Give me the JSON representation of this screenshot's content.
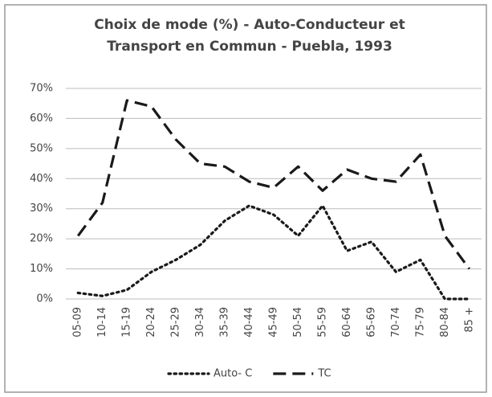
{
  "chart_data": {
    "type": "line",
    "title": "Choix de mode (%) - Auto-Conducteur et Transport en Commun - Puebla, 1993",
    "categories": [
      "05-09",
      "10-14",
      "15-19",
      "20-24",
      "25-29",
      "30-34",
      "35-39",
      "40-44",
      "45-49",
      "50-54",
      "55-59",
      "60-64",
      "65-69",
      "70-74",
      "75-79",
      "80-84",
      "85 +"
    ],
    "series": [
      {
        "name": "Auto- C",
        "color": "#1a1a1a",
        "dash": "dotted",
        "values": [
          2,
          1,
          3,
          9,
          13,
          18,
          26,
          31,
          28,
          21,
          31,
          16,
          19,
          9,
          13,
          0,
          0
        ]
      },
      {
        "name": "TC",
        "color": "#1a1a1a",
        "dash": "dashed",
        "values": [
          21,
          32,
          66,
          64,
          53,
          45,
          44,
          39,
          37,
          44,
          36,
          43,
          40,
          39,
          48,
          21,
          10
        ]
      }
    ],
    "ylim": [
      0,
      70
    ],
    "yticks": [
      {
        "value": 0,
        "label": "0%"
      },
      {
        "value": 10,
        "label": "10%"
      },
      {
        "value": 20,
        "label": "20%"
      },
      {
        "value": 30,
        "label": "30%"
      },
      {
        "value": 40,
        "label": "40%"
      },
      {
        "value": 50,
        "label": "50%"
      },
      {
        "value": 60,
        "label": "60%"
      },
      {
        "value": 70,
        "label": "70%"
      }
    ],
    "grid": true,
    "legend": "bottom"
  }
}
